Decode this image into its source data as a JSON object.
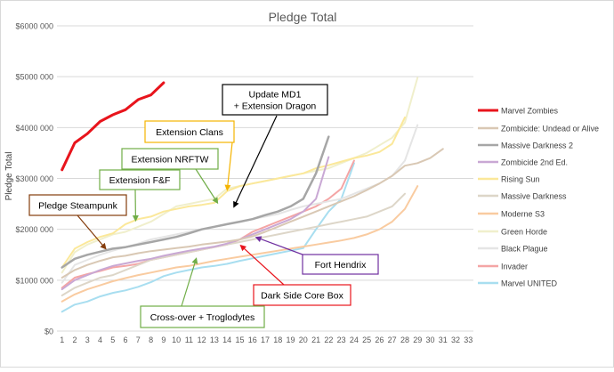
{
  "chart_data": {
    "type": "line",
    "title": "Pledge Total",
    "ylabel": "Pledge Total",
    "xlabel": "",
    "xlim": [
      1,
      33
    ],
    "ylim": [
      0,
      6000000
    ],
    "x_ticks": [
      "1",
      "2",
      "3",
      "4",
      "5",
      "6",
      "7",
      "8",
      "9",
      "10",
      "11",
      "12",
      "13",
      "14",
      "15",
      "16",
      "17",
      "18",
      "19",
      "20",
      "21",
      "22",
      "23",
      "24",
      "25",
      "26",
      "27",
      "28",
      "29",
      "30",
      "31",
      "32",
      "33"
    ],
    "y_ticks": [
      {
        "value": 0,
        "label": "$0"
      },
      {
        "value": 1000000,
        "label": "$1000 000"
      },
      {
        "value": 2000000,
        "label": "$2000 000"
      },
      {
        "value": 3000000,
        "label": "$3000 000"
      },
      {
        "value": 4000000,
        "label": "$4000 000"
      },
      {
        "value": 5000000,
        "label": "$5000 000"
      },
      {
        "value": 6000000,
        "label": "$6000 000"
      }
    ],
    "grid": "horizontal",
    "legend_position": "right",
    "series": [
      {
        "name": "Marvel Zombies",
        "color": "#e8141c",
        "width": 3,
        "x_start": 1,
        "values": [
          3170000,
          3700000,
          3880000,
          4120000,
          4250000,
          4350000,
          4550000,
          4640000,
          4880000
        ]
      },
      {
        "name": "Zombicide: Undead or Alive",
        "color": "#d9c8b4",
        "width": 2,
        "x_start": 1,
        "values": [
          1050000,
          1200000,
          1300000,
          1380000,
          1450000,
          1480000,
          1530000,
          1570000,
          1600000,
          1630000,
          1660000,
          1700000,
          1730000,
          1760000,
          1800000,
          1860000,
          1950000,
          2050000,
          2150000,
          2250000,
          2350000,
          2450000,
          2550000,
          2650000,
          2770000,
          2900000,
          3050000,
          3250000,
          3300000,
          3400000,
          3580000
        ]
      },
      {
        "name": "Massive Darkness 2",
        "color": "#a6a6a6",
        "width": 2.5,
        "x_start": 1,
        "values": [
          1250000,
          1420000,
          1500000,
          1560000,
          1620000,
          1650000,
          1700000,
          1750000,
          1800000,
          1850000,
          1920000,
          2000000,
          2050000,
          2100000,
          2150000,
          2200000,
          2280000,
          2350000,
          2450000,
          2600000,
          3100000,
          3820000
        ]
      },
      {
        "name": "Zombicide 2nd Ed.",
        "color": "#c9a8d4",
        "width": 2,
        "x_start": 1,
        "values": [
          820000,
          1000000,
          1100000,
          1200000,
          1280000,
          1330000,
          1380000,
          1420000,
          1480000,
          1530000,
          1580000,
          1620000,
          1660000,
          1720000,
          1800000,
          1900000,
          2000000,
          2100000,
          2200000,
          2350000,
          2600000,
          3420000
        ]
      },
      {
        "name": "Rising Sun",
        "color": "#fbe89a",
        "width": 2,
        "x_start": 1,
        "values": [
          1250000,
          1620000,
          1750000,
          1850000,
          1920000,
          2100000,
          2200000,
          2250000,
          2350000,
          2400000,
          2450000,
          2480000,
          2520000,
          2750000,
          2850000,
          2900000,
          2950000,
          3000000,
          3050000,
          3100000,
          3200000,
          3260000,
          3330000,
          3400000,
          3450000,
          3520000,
          3680000,
          4200000
        ]
      },
      {
        "name": "Massive Darkness",
        "color": "#ddd6c8",
        "width": 2,
        "x_start": 1,
        "values": [
          700000,
          850000,
          950000,
          1050000,
          1100000,
          1200000,
          1300000,
          1400000,
          1450000,
          1500000,
          1550000,
          1600000,
          1650000,
          1700000,
          1750000,
          1800000,
          1850000,
          1900000,
          1950000,
          2000000,
          2050000,
          2100000,
          2150000,
          2200000,
          2250000,
          2350000,
          2450000,
          2700000
        ]
      },
      {
        "name": "Moderne S3",
        "color": "#f9cba0",
        "width": 2,
        "x_start": 1,
        "values": [
          580000,
          720000,
          820000,
          900000,
          980000,
          1040000,
          1100000,
          1150000,
          1200000,
          1250000,
          1280000,
          1330000,
          1380000,
          1420000,
          1460000,
          1500000,
          1540000,
          1580000,
          1620000,
          1660000,
          1700000,
          1740000,
          1780000,
          1830000,
          1900000,
          2000000,
          2150000,
          2400000,
          2850000
        ]
      },
      {
        "name": "Green Horde",
        "color": "#f0efcc",
        "width": 2,
        "x_start": 1,
        "values": [
          1150000,
          1550000,
          1700000,
          1800000,
          1900000,
          1950000,
          2050000,
          2150000,
          2300000,
          2450000,
          2500000,
          2550000,
          2600000,
          2800000,
          2850000,
          2900000,
          2950000,
          3000000,
          3050000,
          3100000,
          3150000,
          3200000,
          3300000,
          3400000,
          3500000,
          3650000,
          3800000,
          4100000,
          4980000
        ]
      },
      {
        "name": "Black Plague",
        "color": "#e5e5e5",
        "width": 2,
        "x_start": 1,
        "values": [
          950000,
          1300000,
          1400000,
          1500000,
          1580000,
          1650000,
          1720000,
          1800000,
          1850000,
          1900000,
          1950000,
          2000000,
          2050000,
          2100000,
          2150000,
          2200000,
          2250000,
          2300000,
          2380000,
          2450000,
          2500000,
          2550000,
          2600000,
          2700000,
          2800000,
          2900000,
          3050000,
          3350000,
          4050000
        ]
      },
      {
        "name": "Invader",
        "color": "#f4a5a5",
        "width": 2,
        "x_start": 1,
        "values": [
          850000,
          1050000,
          1120000,
          1180000,
          1250000,
          1280000,
          1320000,
          1400000,
          1450000,
          1500000,
          1550000,
          1600000,
          1650000,
          1700000,
          1800000,
          1950000,
          2050000,
          2150000,
          2250000,
          2350000,
          2450000,
          2600000,
          2800000,
          3350000
        ]
      },
      {
        "name": "Marvel UNITED",
        "color": "#a8def0",
        "width": 2,
        "x_start": 1,
        "values": [
          380000,
          520000,
          580000,
          680000,
          750000,
          800000,
          870000,
          960000,
          1080000,
          1150000,
          1200000,
          1250000,
          1280000,
          1320000,
          1380000,
          1430000,
          1480000,
          1530000,
          1580000,
          1630000,
          2000000,
          2350000,
          2600000,
          3300000
        ]
      }
    ],
    "annotations": [
      {
        "text": "Update MD1\n+ Extension Dragon",
        "border": "#000000",
        "arrow_to": [
          14.5,
          2420000
        ]
      },
      {
        "text": "Extension Clans",
        "border": "#f5b400",
        "arrow_to": [
          14,
          2750000
        ]
      },
      {
        "text": "Extension NRFTW",
        "border": "#70ad47",
        "arrow_to": [
          13.3,
          2500000
        ]
      },
      {
        "text": "Extension F&F",
        "border": "#70ad47",
        "arrow_to": [
          6.8,
          2150000
        ]
      },
      {
        "text": "Pledge Steampunk",
        "border": "#843c0c",
        "arrow_to": [
          4.5,
          1600000
        ]
      },
      {
        "text": "Fort Hendrix",
        "border": "#7030a0",
        "arrow_to": [
          16.2,
          1850000
        ]
      },
      {
        "text": "Dark Side Core Box",
        "border": "#e8141c",
        "arrow_to": [
          15,
          1700000
        ]
      },
      {
        "text": "Cross-over + Troglodytes",
        "border": "#70ad47",
        "arrow_to": [
          11.6,
          1450000
        ]
      }
    ]
  }
}
